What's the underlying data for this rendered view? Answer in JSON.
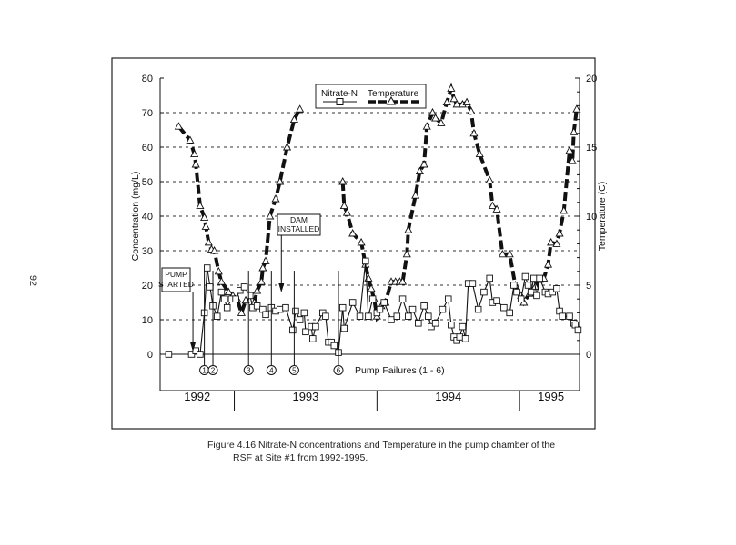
{
  "page_number": "92",
  "caption": {
    "line1": "Figure 4.16  Nitrate-N concentrations and Temperature in the pump chamber of the",
    "line2": "RSF at Site #1 from 1992-1995."
  },
  "chart_data": {
    "type": "line",
    "title": "",
    "xlabel": "",
    "ylabel": "Concentration (mg/L)",
    "ylabel_right": "Temperature (C)",
    "xlim": [
      1992.48,
      1995.42
    ],
    "ylim": [
      0,
      80
    ],
    "ylim_right": [
      0,
      20
    ],
    "yticks": [
      "0",
      "10",
      "20",
      "30",
      "40",
      "50",
      "60",
      "70",
      "80"
    ],
    "yticks_right": [
      "0",
      "5",
      "10",
      "15",
      "20"
    ],
    "year_labels": [
      {
        "label": "1992",
        "center": 1992.74
      },
      {
        "label": "1993",
        "center": 1993.5
      },
      {
        "label": "1994",
        "center": 1994.5
      },
      {
        "label": "1995",
        "center": 1995.22
      }
    ],
    "year_boundaries": [
      1993.0,
      1994.0,
      1995.0
    ],
    "grid": "dotted horizontal at 10-70",
    "legend": {
      "placement": "top-center",
      "entries": [
        "Nitrate-N",
        "Temperature"
      ]
    },
    "series": [
      {
        "name": "Nitrate-N",
        "axis": "left",
        "marker": "square",
        "x": [
          1992.54,
          1992.7,
          1992.73,
          1992.76,
          1992.79,
          1992.81,
          1992.83,
          1992.85,
          1992.88,
          1992.91,
          1992.93,
          1992.95,
          1992.98,
          1993.01,
          1993.04,
          1993.07,
          1993.11,
          1993.13,
          1993.16,
          1993.2,
          1993.22,
          1993.26,
          1993.29,
          1993.32,
          1993.36,
          1993.41,
          1993.43,
          1993.46,
          1993.49,
          1993.5,
          1993.54,
          1993.55,
          1993.57,
          1993.62,
          1993.64,
          1993.66,
          1993.68,
          1993.7,
          1993.73,
          1993.76,
          1993.77,
          1993.83,
          1993.88,
          1993.92,
          1993.94,
          1993.97,
          1994.0,
          1994.02,
          1994.05,
          1994.1,
          1994.14,
          1994.18,
          1994.22,
          1994.25,
          1994.29,
          1994.33,
          1994.36,
          1994.38,
          1994.41,
          1994.46,
          1994.5,
          1994.52,
          1994.54,
          1994.56,
          1994.58,
          1994.6,
          1994.62,
          1994.64,
          1994.67,
          1994.71,
          1994.75,
          1994.79,
          1994.81,
          1994.84,
          1994.89,
          1994.93,
          1994.96,
          1994.98,
          1995.01,
          1995.04,
          1995.06,
          1995.08,
          1995.1,
          1995.12,
          1995.14,
          1995.18,
          1995.2,
          1995.23,
          1995.26,
          1995.28,
          1995.3,
          1995.35,
          1995.38,
          1995.39,
          1995.41
        ],
        "y": [
          0,
          0,
          1,
          0,
          12,
          25,
          19.5,
          14,
          11,
          18,
          16,
          13.5,
          16,
          16,
          18.5,
          19.5,
          17,
          13.5,
          14,
          13,
          11.5,
          13.5,
          12.5,
          13,
          13.5,
          7,
          12.5,
          10,
          12,
          6.5,
          8,
          4.5,
          8,
          12,
          11,
          3.5,
          3.5,
          2.5,
          0.5,
          13.5,
          7.5,
          15,
          11,
          27,
          11,
          16,
          12,
          13,
          15,
          10,
          11,
          16,
          11,
          13,
          9,
          14,
          11,
          8,
          9,
          13,
          16,
          8.5,
          5,
          4,
          5,
          8,
          4.5,
          20.5,
          20.5,
          13,
          18,
          22,
          15,
          15.5,
          13.5,
          12,
          20,
          18,
          16,
          22.5,
          20,
          18,
          22,
          17,
          22,
          18,
          17.5,
          18,
          19,
          12.5,
          11,
          11,
          9,
          8.5,
          7
        ]
      },
      {
        "name": "Temperature",
        "axis": "right",
        "marker": "triangle",
        "segments": [
          {
            "x": [
              1992.61,
              1992.69,
              1992.72,
              1992.73,
              1992.76,
              1992.79,
              1992.8,
              1992.82,
              1992.84,
              1992.86,
              1992.89,
              1992.91,
              1992.96,
              1992.99,
              1993.02,
              1993.05,
              1993.08,
              1993.11,
              1993.14,
              1993.16,
              1993.19,
              1993.2,
              1993.22,
              1993.25,
              1993.29,
              1993.32,
              1993.37,
              1993.42,
              1993.46
            ],
            "y": [
              16.5,
              15.5,
              14.5,
              13.75,
              10.75,
              9.9,
              9.25,
              8.1,
              7.6,
              7.5,
              6.0,
              5.25,
              4.5,
              4.25,
              4.0,
              3.0,
              3.9,
              4.25,
              3.75,
              4.6,
              5.25,
              6.25,
              6.75,
              10.0,
              11.25,
              12.5,
              15.0,
              17.0,
              17.75
            ]
          },
          {
            "x": [
              1993.76,
              1993.77,
              1993.79,
              1993.83,
              1993.89,
              1993.92,
              1993.94,
              1993.96,
              1993.98,
              1994.0,
              1994.03,
              1994.06,
              1994.1,
              1994.13,
              1994.16,
              1994.18,
              1994.21,
              1994.22,
              1994.27,
              1994.3,
              1994.33,
              1994.35,
              1994.39,
              1994.41,
              1994.45,
              1994.49,
              1994.52,
              1994.54,
              1994.56,
              1994.6,
              1994.63,
              1994.66,
              1994.68,
              1994.72,
              1994.79,
              1994.81,
              1994.84,
              1994.88,
              1994.93,
              1994.97,
              1995.01,
              1995.03,
              1995.07,
              1995.11,
              1995.14,
              1995.17,
              1995.2,
              1995.22,
              1995.26,
              1995.28,
              1995.31,
              1995.35,
              1995.37,
              1995.38,
              1995.4
            ],
            "y": [
              12.5,
              10.75,
              10.25,
              8.75,
              8.1,
              6.5,
              5.5,
              4.75,
              4.0,
              2.75,
              3.5,
              3.75,
              5.25,
              5.25,
              5.25,
              5.25,
              7.25,
              9.0,
              11.5,
              13.25,
              13.75,
              16.5,
              17.5,
              17.1,
              16.75,
              18.25,
              19.25,
              18.5,
              18.1,
              18.1,
              18.25,
              17.6,
              16.0,
              14.5,
              12.6,
              10.75,
              10.5,
              7.25,
              7.25,
              5.0,
              4.25,
              3.75,
              4.4,
              4.9,
              5.4,
              5.5,
              6.5,
              8.1,
              8.0,
              8.75,
              10.4,
              14.75,
              14.0,
              16.1,
              17.75
            ]
          }
        ]
      }
    ],
    "annotations": {
      "pump_started": {
        "line1": "PUMP",
        "line2": "STARTED",
        "x": 1992.71
      },
      "dam_installed": {
        "line1": "DAM",
        "line2": "INSTALLED",
        "x": 1993.33
      },
      "pump_failures_label": "Pump Failures (1 - 6)",
      "pump_failures": [
        {
          "label": "1",
          "x": 1992.79
        },
        {
          "label": "2",
          "x": 1992.85
        },
        {
          "label": "3",
          "x": 1993.1
        },
        {
          "label": "4",
          "x": 1993.26
        },
        {
          "label": "5",
          "x": 1993.42
        },
        {
          "label": "6",
          "x": 1993.73
        }
      ]
    }
  }
}
